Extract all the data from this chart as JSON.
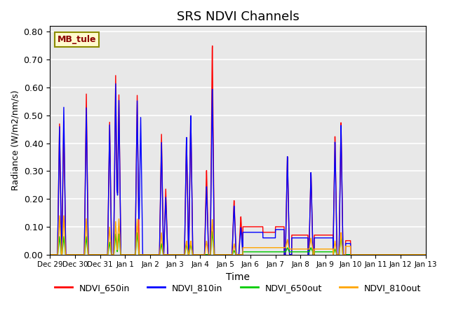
{
  "title": "SRS NDVI Channels",
  "xlabel": "Time",
  "ylabel": "Radiance (W/m2/nm/s)",
  "ylim": [
    0.0,
    0.82
  ],
  "yticks": [
    0.0,
    0.1,
    0.2,
    0.3,
    0.4,
    0.5,
    0.6,
    0.7,
    0.8
  ],
  "annotation_text": "MB_tule",
  "annotation_color": "#8B0000",
  "annotation_bg": "#FFFACD",
  "annotation_border": "#8B8B00",
  "colors": {
    "NDVI_650in": "#FF0000",
    "NDVI_810in": "#0000FF",
    "NDVI_650out": "#00CC00",
    "NDVI_810out": "#FFA500"
  },
  "bg_color": "#E8E8E8",
  "line_width": 1.0,
  "xtick_labels": [
    "Dec 29",
    "Dec 30",
    "Dec 31",
    "Jan 1",
    "Jan 2",
    "Jan 3",
    "Jan 4",
    "Jan 5",
    "Jan 6",
    "Jan 7",
    "Jan 8",
    "Jan 9",
    "Jan 10",
    "Jan 11",
    "Jan 12",
    "Jan 13"
  ],
  "legend_entries": [
    "NDVI_650in",
    "NDVI_810in",
    "NDVI_650out",
    "NDVI_810out"
  ]
}
